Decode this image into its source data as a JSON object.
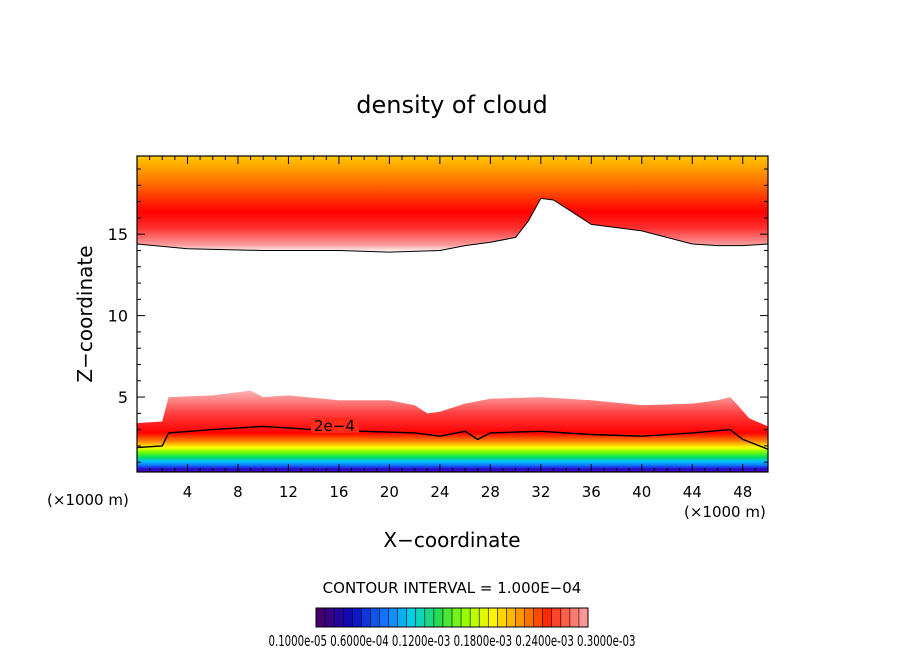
{
  "chart_data": {
    "type": "heatmap",
    "title": "density of cloud",
    "xlabel": "X−coordinate",
    "ylabel": "Z−coordinate",
    "xunit_left": "(×1000 m)",
    "xunit_right": "(×1000 m)",
    "xlim": [
      0,
      50
    ],
    "ylim": [
      0.4,
      19.8
    ],
    "x_ticks": [
      4,
      8,
      12,
      16,
      20,
      24,
      28,
      32,
      36,
      40,
      44,
      48
    ],
    "y_ticks": [
      5,
      10,
      15
    ],
    "contour_label": "2e−4",
    "contour_value": 0.0002,
    "contour_interval_text": "CONTOUR INTERVAL = 1.000E−04",
    "colorbar_labels_text": "0.1000e-05 0.6000e-04 0.1200e-03 0.1800e-03 0.2400e-03 0.3000e-03",
    "colorbar_range": [
      1e-06,
      0.0003
    ],
    "upper_layer_base": {
      "x": [
        0,
        4,
        10,
        16,
        20,
        24,
        26,
        28,
        30,
        31,
        32,
        33,
        34,
        36,
        40,
        44,
        46,
        48,
        50
      ],
      "z": [
        14.4,
        14.1,
        14.0,
        14.0,
        13.9,
        14.0,
        14.3,
        14.5,
        14.8,
        15.8,
        17.2,
        17.1,
        16.6,
        15.6,
        15.2,
        14.4,
        14.3,
        14.3,
        14.4
      ]
    },
    "lower_layer_top": {
      "x": [
        0,
        2,
        2.5,
        6,
        9,
        10,
        12,
        16,
        20,
        22,
        23,
        24,
        26,
        28,
        32,
        36,
        40,
        44,
        46,
        47,
        47.5,
        48.5,
        50
      ],
      "z": [
        3.4,
        3.5,
        5.0,
        5.1,
        5.4,
        5.0,
        5.1,
        4.8,
        4.8,
        4.5,
        4.0,
        4.1,
        4.6,
        4.9,
        5.0,
        4.8,
        4.5,
        4.6,
        4.8,
        5.0,
        4.6,
        3.7,
        3.2
      ]
    },
    "contour_2e4": {
      "x": [
        0,
        2,
        2.5,
        6,
        10,
        14,
        18,
        22,
        24,
        26,
        27,
        28,
        32,
        36,
        40,
        44,
        47,
        48,
        50
      ],
      "z": [
        1.9,
        2.0,
        2.8,
        3.0,
        3.2,
        3.0,
        2.9,
        2.8,
        2.6,
        2.9,
        2.4,
        2.8,
        2.9,
        2.7,
        2.6,
        2.8,
        3.0,
        2.4,
        1.8
      ]
    }
  }
}
